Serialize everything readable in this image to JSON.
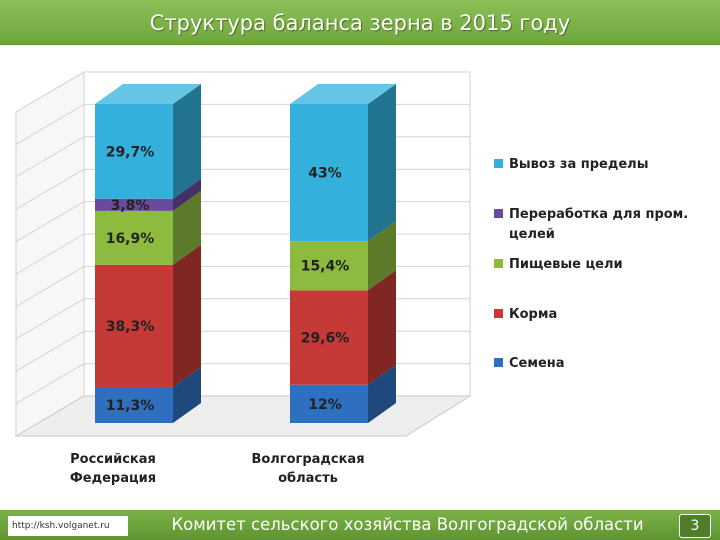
{
  "slide": {
    "title": "Структура баланса зерна в 2015 году",
    "footer_url": "http://ksh.volganet.ru",
    "footer_org": "Комитет сельского хозяйства Волгоградской области",
    "page_number": "3"
  },
  "colors": {
    "Семена": "#2f6fc0",
    "Корма": "#c53a36",
    "Пищевые цели": "#8dbb3f",
    "Переработка для пром. целей": "#6a4a9b",
    "Вывоз за пределы": "#33b1dc"
  },
  "chart_data": {
    "type": "bar",
    "stacked": true,
    "percent_stacked": true,
    "three_d": true,
    "categories": [
      [
        "Российская",
        "Федерация"
      ],
      [
        "Волгоградская",
        "область"
      ]
    ],
    "series": [
      {
        "name": "Семена",
        "values": [
          11.3,
          12
        ],
        "labels": [
          "11,3%",
          "12%"
        ]
      },
      {
        "name": "Корма",
        "values": [
          38.3,
          29.6
        ],
        "labels": [
          "38,3%",
          "29,6%"
        ]
      },
      {
        "name": "Пищевые цели",
        "values": [
          16.9,
          15.4
        ],
        "labels": [
          "16,9%",
          "15,4%"
        ]
      },
      {
        "name": "Переработка для пром. целей",
        "values": [
          3.8,
          0
        ],
        "labels": [
          "3,8%",
          ""
        ]
      },
      {
        "name": "Вывоз за пределы",
        "values": [
          29.7,
          43
        ],
        "labels": [
          "29,7%",
          "43%"
        ]
      }
    ],
    "legend": {
      "position": "right",
      "items": [
        [
          "Вывоз за пределы"
        ],
        [
          "Переработка для пром.",
          "целей"
        ],
        [
          "Пищевые цели"
        ],
        [
          "Корма"
        ],
        [
          "Семена"
        ]
      ]
    },
    "ylim": [
      0,
      100
    ],
    "grid": true
  }
}
